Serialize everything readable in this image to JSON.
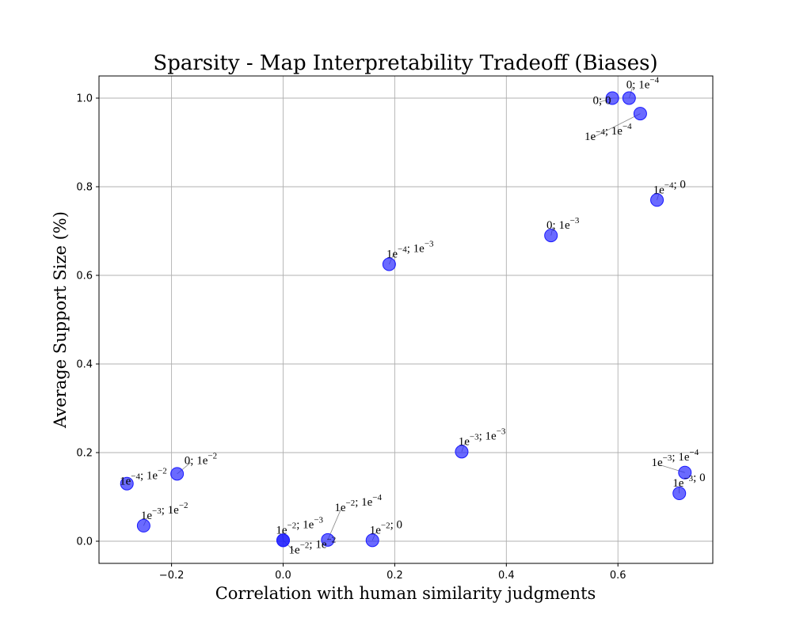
{
  "chart_data": {
    "type": "scatter",
    "title": "Sparsity - Map Interpretability Tradeoff (Biases)",
    "xlabel": "Correlation with human similarity judgments",
    "ylabel": "Average Support Size (%)",
    "xlim": [
      -0.33,
      0.77
    ],
    "ylim": [
      -0.05,
      1.05
    ],
    "xticks": [
      -0.2,
      0.0,
      0.2,
      0.4,
      0.6
    ],
    "xtick_labels": [
      "−0.2",
      "0.0",
      "0.2",
      "0.4",
      "0.6"
    ],
    "yticks": [
      0.0,
      0.2,
      0.4,
      0.6,
      0.8,
      1.0
    ],
    "ytick_labels": [
      "0.0",
      "0.2",
      "0.4",
      "0.6",
      "0.8",
      "1.0"
    ],
    "grid": true,
    "color": "#1a1aff",
    "points": [
      {
        "x": 0.59,
        "y": 1.0,
        "a": "0",
        "b": "0",
        "label_dx": -0.035,
        "label_dy": -0.013,
        "anchor": "start"
      },
      {
        "x": 0.62,
        "y": 1.0,
        "a": "0",
        "b": "1e",
        "b_exp": "−4",
        "label_dx": -0.005,
        "label_dy": 0.022,
        "anchor": "start"
      },
      {
        "x": 0.64,
        "y": 0.965,
        "a": "1e",
        "a_exp": "−4",
        "b": "1e",
        "b_exp": "−4",
        "label_dx": -0.1,
        "label_dy": -0.06,
        "anchor": "start"
      },
      {
        "x": 0.67,
        "y": 0.77,
        "a": "1e",
        "a_exp": "−4",
        "b": "0",
        "label_dx": -0.007,
        "label_dy": 0.015,
        "anchor": "start"
      },
      {
        "x": 0.48,
        "y": 0.69,
        "a": "0",
        "b": "1e",
        "b_exp": "−3",
        "label_dx": -0.008,
        "label_dy": 0.015,
        "anchor": "start"
      },
      {
        "x": 0.19,
        "y": 0.625,
        "a": "1e",
        "a_exp": "−4",
        "b": "1e",
        "b_exp": "−3",
        "label_dx": -0.005,
        "label_dy": 0.015,
        "anchor": "start"
      },
      {
        "x": 0.32,
        "y": 0.202,
        "a": "1e",
        "a_exp": "−3",
        "b": "1e",
        "b_exp": "−3",
        "label_dx": -0.006,
        "label_dy": 0.015,
        "anchor": "start"
      },
      {
        "x": 0.72,
        "y": 0.155,
        "a": "1e",
        "a_exp": "−3",
        "b": "1e",
        "b_exp": "−4",
        "label_dx": -0.06,
        "label_dy": 0.015,
        "anchor": "start"
      },
      {
        "x": 0.71,
        "y": 0.108,
        "a": "1e",
        "a_exp": "−3",
        "b": "0",
        "label_dx": -0.012,
        "label_dy": 0.015,
        "anchor": "start"
      },
      {
        "x": -0.19,
        "y": 0.152,
        "a": "0",
        "b": "1e",
        "b_exp": "−2",
        "label_dx": 0.013,
        "label_dy": 0.022,
        "anchor": "start"
      },
      {
        "x": -0.28,
        "y": 0.13,
        "a": "1e",
        "a_exp": "−4",
        "b": "1e",
        "b_exp": "−2",
        "label_dx": -0.013,
        "label_dy": -0.002,
        "anchor": "start"
      },
      {
        "x": -0.25,
        "y": 0.035,
        "a": "1e",
        "a_exp": "−3",
        "b": "1e",
        "b_exp": "−2",
        "label_dx": -0.005,
        "label_dy": 0.015,
        "anchor": "start"
      },
      {
        "x": 0.0,
        "y": 0.002,
        "a": "1e",
        "a_exp": "−2",
        "b": "1e",
        "b_exp": "−3",
        "label_dx": -0.013,
        "label_dy": 0.015,
        "anchor": "start"
      },
      {
        "x": 0.0,
        "y": 0.002,
        "a": "1e",
        "a_exp": "−2",
        "b": "1e",
        "b_exp": "−2",
        "label_dx": 0.01,
        "label_dy": -0.03,
        "anchor": "start"
      },
      {
        "x": 0.08,
        "y": 0.003,
        "a": "1e",
        "a_exp": "−2",
        "b": "1e",
        "b_exp": "−4",
        "label_dx": 0.012,
        "label_dy": 0.065,
        "anchor": "start"
      },
      {
        "x": 0.16,
        "y": 0.002,
        "a": "1e",
        "a_exp": "−2",
        "b": "0",
        "label_dx": -0.005,
        "label_dy": 0.015,
        "anchor": "start"
      }
    ]
  }
}
